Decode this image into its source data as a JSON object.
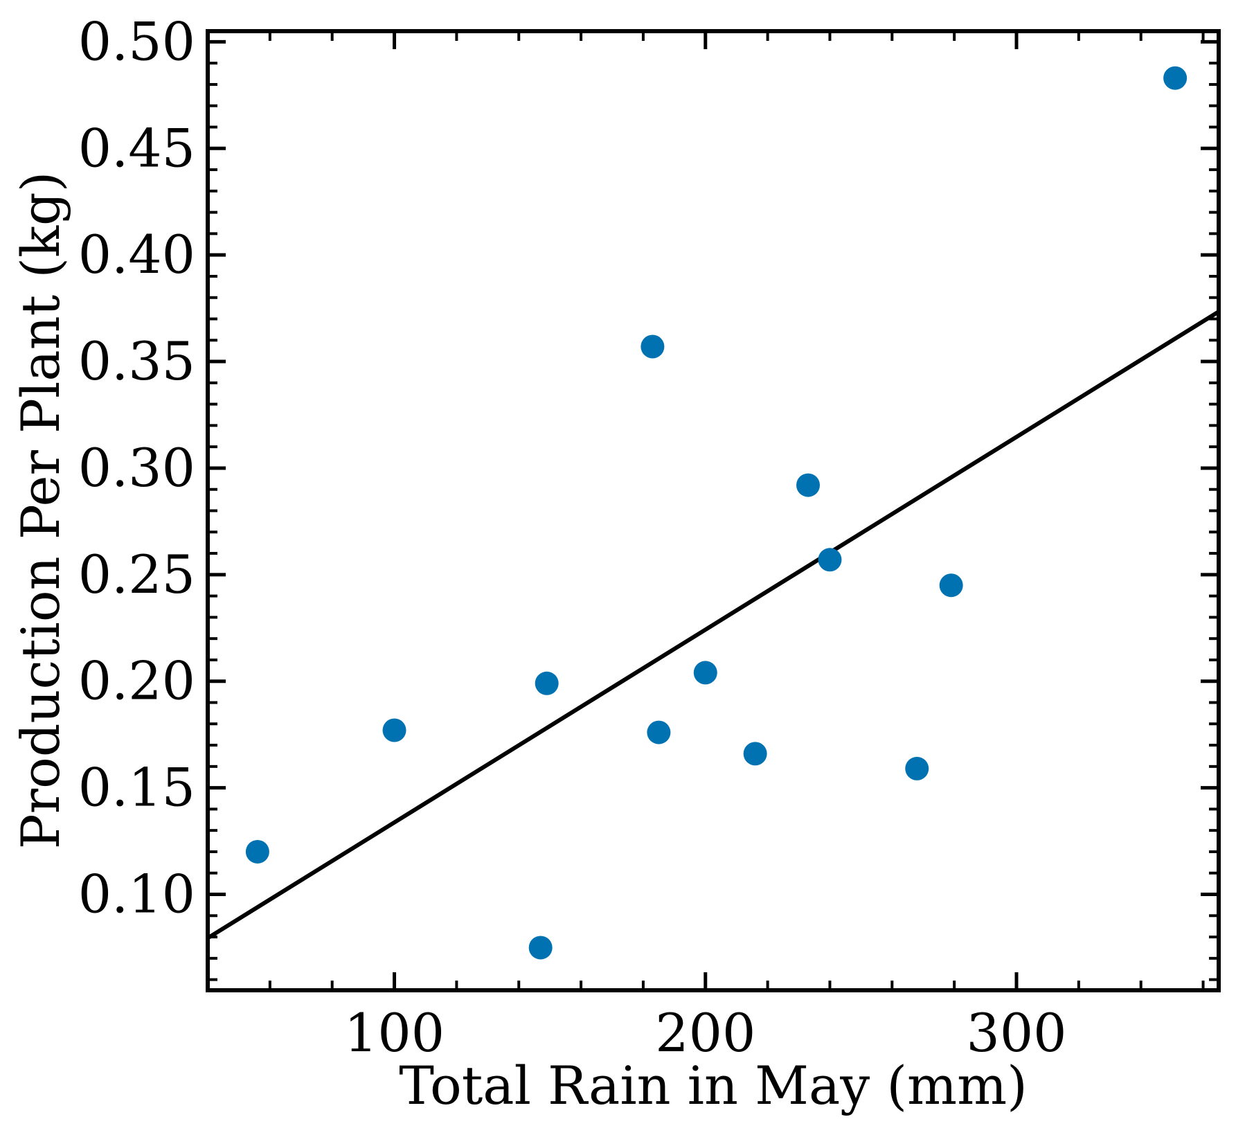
{
  "chart_data": {
    "type": "scatter",
    "title": "",
    "xlabel": "Total Rain in May (mm)",
    "ylabel": "Production Per Plant (kg)",
    "xlim": [
      40,
      365
    ],
    "ylim": [
      0.055,
      0.505
    ],
    "x_ticks": [
      100,
      200,
      300
    ],
    "x_tick_labels": [
      "100",
      "200",
      "300"
    ],
    "y_ticks": [
      0.1,
      0.15,
      0.2,
      0.25,
      0.3,
      0.35,
      0.4,
      0.45,
      0.5
    ],
    "y_tick_labels": [
      "0.10",
      "0.15",
      "0.20",
      "0.25",
      "0.30",
      "0.35",
      "0.40",
      "0.45",
      "0.50"
    ],
    "x_minor_step": 20,
    "y_minor_step": 0.01,
    "grid": false,
    "point_color": "#0072b2",
    "line_color": "#000000",
    "points": [
      {
        "x": 56,
        "y": 0.12
      },
      {
        "x": 100,
        "y": 0.177
      },
      {
        "x": 147,
        "y": 0.075
      },
      {
        "x": 149,
        "y": 0.199
      },
      {
        "x": 183,
        "y": 0.357
      },
      {
        "x": 185,
        "y": 0.176
      },
      {
        "x": 200,
        "y": 0.204
      },
      {
        "x": 216,
        "y": 0.166
      },
      {
        "x": 233,
        "y": 0.292
      },
      {
        "x": 240,
        "y": 0.257
      },
      {
        "x": 268,
        "y": 0.159
      },
      {
        "x": 279,
        "y": 0.245
      },
      {
        "x": 351,
        "y": 0.483
      }
    ],
    "fit_line": {
      "x": [
        40,
        365
      ],
      "y": [
        0.0795,
        0.3734
      ]
    }
  }
}
